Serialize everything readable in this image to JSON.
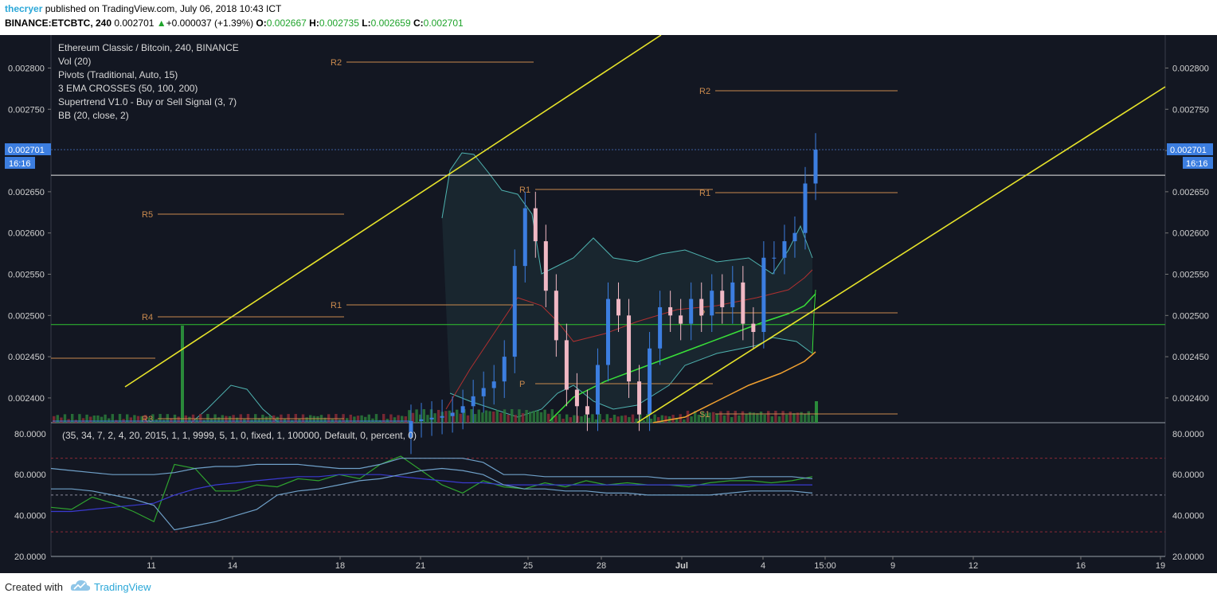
{
  "header": {
    "author": "thecryer",
    "published": "published on TradingView.com, July 06, 2018 10:43 ICT",
    "symbol": "BINANCE:ETCBTC, 240",
    "last": "0.002701",
    "arrow": "▲",
    "change": "+0.000037 (+1.39%)",
    "o_label": "O:",
    "o_value": "0.002667",
    "h_label": "H:",
    "h_value": "0.002735",
    "l_label": "L:",
    "l_value": "0.002659",
    "c_label": "C:",
    "c_value": "0.002701"
  },
  "legend": {
    "title": "Ethereum Classic / Bitcoin, 240, BINANCE",
    "items": [
      "Vol (20)",
      "Pivots (Traditional, Auto, 15)",
      "3 EMA CROSSES (50, 100, 200)",
      "Supertrend V1.0 - Buy or Sell Signal (3, 7)",
      "BB (20, close, 2)"
    ]
  },
  "oscillator": {
    "params": "(35, 34, 7, 2, 4, 20, 2015, 1, 1, 9999, 5, 1, 0, fixed, 1, 100000, Default, 0, percent, 0)"
  },
  "footer": {
    "created": "Created with",
    "brand": "TradingView"
  },
  "colors": {
    "background": "#131722",
    "candle_up": "#3c7ee0",
    "candle_down": "#f0b8c4",
    "trendline": "#e6e32a",
    "support_line": "#2fc32f",
    "pivot": "#c98a4e",
    "price_tag": "#3c7ee0"
  },
  "chart_data": [
    {
      "type": "candlestick",
      "title": "Ethereum Classic / Bitcoin, 240, BINANCE",
      "ylim": [
        0.00237,
        0.00284
      ],
      "y_ticks": [
        "0.002800",
        "0.002750",
        "0.002700",
        "0.002650",
        "0.002600",
        "0.002550",
        "0.002500",
        "0.002450",
        "0.002400"
      ],
      "x_ticks": [
        "11",
        "14",
        "18",
        "21",
        "25",
        "28",
        "Jul",
        "4",
        "15:00",
        "9",
        "12",
        "16",
        "19"
      ],
      "last_price": "0.002701",
      "countdown": "16:16",
      "horizontal_levels": [
        0.00267,
        0.002489
      ],
      "pivot_labels": [
        "R2",
        "R5",
        "R4",
        "R3",
        "R1",
        "R1",
        "P",
        "R2",
        "R1",
        "P",
        "S1"
      ],
      "close_samples": [
        0.002372,
        0.002374,
        0.002376,
        0.002378,
        0.002382,
        0.00239,
        0.002402,
        0.002412,
        0.00242,
        0.00245,
        0.00256,
        0.00263,
        0.00259,
        0.00253,
        0.00247,
        0.00241,
        0.00239,
        0.00238,
        0.00244,
        0.00252,
        0.0025,
        0.00242,
        0.00238,
        0.00246,
        0.00251,
        0.0025,
        0.00249,
        0.00252,
        0.0025,
        0.00253,
        0.00251,
        0.00254,
        0.00249,
        0.00248,
        0.00257,
        0.00257,
        0.00259,
        0.0026,
        0.00266,
        0.002701
      ]
    },
    {
      "type": "line",
      "ylim": [
        20,
        85
      ],
      "y_ticks": [
        "80.0000",
        "60.0000",
        "40.0000",
        "20.0000"
      ],
      "levels": [
        68,
        50,
        32
      ],
      "series": [
        {
          "values": [
            44,
            43,
            49,
            46,
            42,
            37,
            65,
            63,
            52,
            52,
            55,
            54,
            58,
            57,
            60,
            58,
            65,
            69,
            62,
            55,
            51,
            57,
            54,
            53,
            56,
            54,
            57,
            55,
            56,
            55,
            55,
            54,
            56,
            57,
            57,
            56,
            57,
            59
          ]
        },
        {
          "values": [
            42,
            42,
            43,
            44,
            45,
            46,
            50,
            53,
            55,
            56,
            57,
            58,
            59,
            59,
            60,
            60,
            60,
            59,
            58,
            57,
            56,
            56,
            55,
            55,
            55,
            55,
            55,
            55,
            55,
            55,
            55,
            55,
            55,
            55,
            55,
            55,
            55,
            55
          ]
        },
        {
          "values": [
            53,
            53,
            52,
            50,
            48,
            45,
            33,
            35,
            37,
            40,
            43,
            50,
            52,
            53,
            55,
            57,
            58,
            60,
            62,
            63,
            62,
            60,
            55,
            53,
            53,
            52,
            52,
            51,
            51,
            50,
            50,
            50,
            50,
            51,
            52,
            52,
            52,
            51
          ]
        },
        {
          "values": [
            63,
            62,
            61,
            60,
            60,
            60,
            61,
            63,
            64,
            64,
            65,
            65,
            65,
            64,
            63,
            63,
            65,
            68,
            68,
            68,
            68,
            66,
            60,
            60,
            59,
            59,
            59,
            59,
            59,
            59,
            58,
            58,
            58,
            58,
            59,
            59,
            59,
            58
          ]
        }
      ]
    }
  ]
}
